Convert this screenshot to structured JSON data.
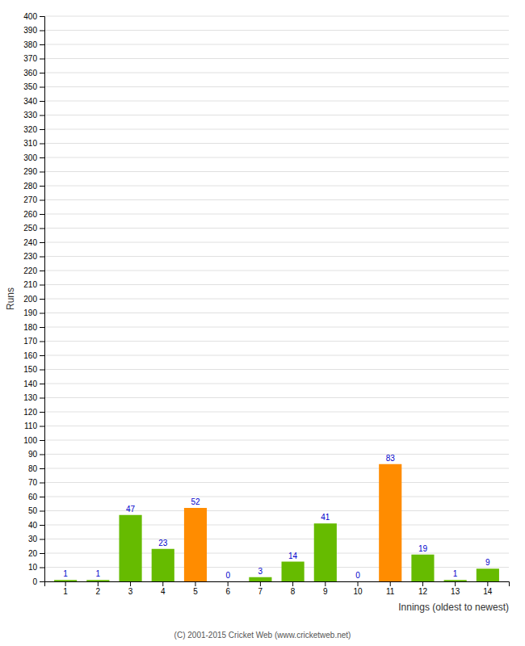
{
  "chart_data": {
    "type": "bar",
    "xlabel": "Innings (oldest to newest)",
    "ylabel": "Runs",
    "categories": [
      1,
      2,
      3,
      4,
      5,
      6,
      7,
      8,
      9,
      10,
      11,
      12,
      13,
      14
    ],
    "values": [
      1,
      1,
      47,
      23,
      52,
      0,
      3,
      14,
      41,
      0,
      83,
      19,
      1,
      9
    ],
    "colors": [
      "#66bb00",
      "#66bb00",
      "#66bb00",
      "#66bb00",
      "#ff8c00",
      "#66bb00",
      "#66bb00",
      "#66bb00",
      "#66bb00",
      "#66bb00",
      "#ff8c00",
      "#66bb00",
      "#66bb00",
      "#66bb00"
    ],
    "ylim": [
      0,
      400
    ],
    "yticks": [
      0,
      10,
      20,
      30,
      40,
      50,
      60,
      70,
      80,
      90,
      100,
      110,
      120,
      130,
      140,
      150,
      160,
      170,
      180,
      190,
      200,
      210,
      220,
      230,
      240,
      250,
      260,
      270,
      280,
      290,
      300,
      310,
      320,
      330,
      340,
      350,
      360,
      370,
      380,
      390,
      400
    ],
    "grid": true,
    "data_labels": true,
    "annotations": [
      "(C) 2001-2015 Cricket Web (www.cricketweb.net)"
    ]
  }
}
